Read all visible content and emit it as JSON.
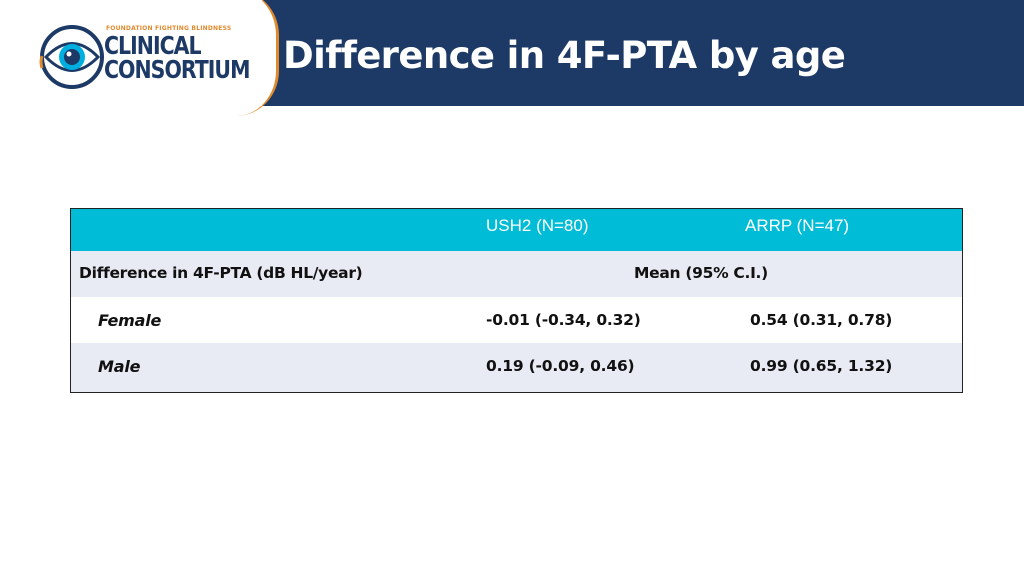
{
  "header": {
    "title": "Difference in 4F-PTA by age",
    "background_color": "#1d3a66"
  },
  "logo": {
    "tagline": "FOUNDATION FIGHTING BLINDNESS",
    "line1": "CLINICAL",
    "line2": "CONSORTIUM",
    "accent_color": "#e08a2e",
    "icon": "eye-icon"
  },
  "table": {
    "header_color": "#00bcd6",
    "columns": [
      "",
      "USH2 (N=80)",
      "ARRP (N=47)"
    ],
    "measure_label": "Difference in 4F-PTA (dB HL/year)",
    "stat_label": "Mean (95% C.I.)",
    "rows": [
      {
        "label": "Female",
        "ush2": "-0.01 (-0.34, 0.32)",
        "arrp": "0.54 (0.31, 0.78)"
      },
      {
        "label": "Male",
        "ush2": "0.19 (-0.09, 0.46)",
        "arrp": "0.99 (0.65, 1.32)"
      }
    ]
  }
}
